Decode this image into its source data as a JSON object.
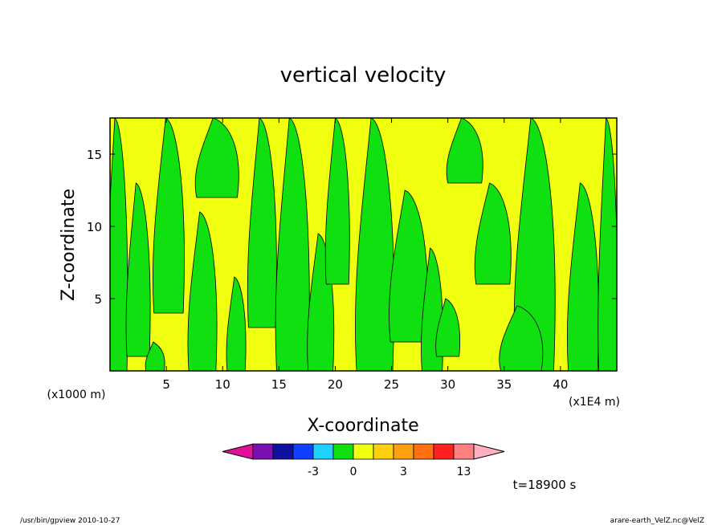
{
  "chart_data": {
    "type": "heatmap",
    "title": "vertical velocity",
    "xlabel": "X-coordinate",
    "ylabel": "Z-coordinate",
    "x_unit_left": "(x1000 m)",
    "x_unit_right": "(x1E4 m)",
    "x_ticks": [
      "5",
      "10",
      "15",
      "20",
      "25",
      "30",
      "35",
      "40"
    ],
    "x_tick_values": [
      5,
      10,
      15,
      20,
      25,
      30,
      35,
      40
    ],
    "y_ticks": [
      "5",
      "10",
      "15"
    ],
    "y_tick_values": [
      5,
      10,
      15
    ],
    "xlim": [
      0,
      45
    ],
    "ylim": [
      0,
      17.5
    ],
    "colorbar": {
      "colors": [
        "#e0109a",
        "#7a10b0",
        "#1010a0",
        "#1040ff",
        "#20d0ff",
        "#10e010",
        "#f0ff10",
        "#ffd010",
        "#ffa010",
        "#ff7010",
        "#ff2020",
        "#ff8080",
        "#ffb0c0"
      ],
      "tick_labels": [
        "-3",
        "0",
        "3",
        "13"
      ]
    },
    "dominant_levels": [
      "green",
      "yellow"
    ],
    "time_label": "t=18900 s",
    "footer_left": "/usr/bin/gpview   2010-10-27",
    "footer_right": "arare-earth_VelZ.nc@VelZ",
    "colors": {
      "green": "#10e010",
      "yellow": "#f0ff10",
      "frame": "#000000"
    }
  }
}
